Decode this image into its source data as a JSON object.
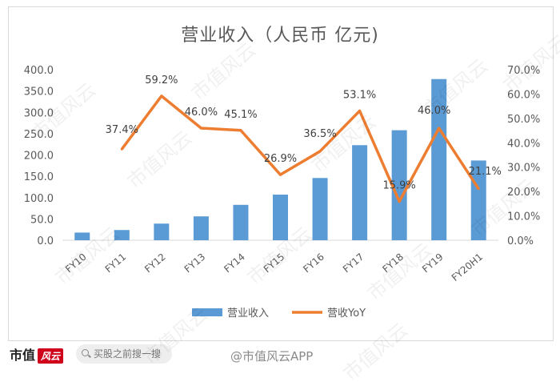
{
  "chart_data": {
    "type": "bar",
    "title": "营业收入（人民币 亿元)",
    "categories": [
      "FY10",
      "FY11",
      "FY12",
      "FY13",
      "FY14",
      "FY15",
      "FY16",
      "FY17",
      "FY18",
      "FY19",
      "FY20H1"
    ],
    "series": [
      {
        "name": "营业收入",
        "type": "bar",
        "axis": "left",
        "color": "#5b9bd5",
        "values": [
          18,
          24,
          39,
          56,
          83,
          107,
          146,
          223,
          258,
          378,
          187
        ]
      },
      {
        "name": "营收YoY",
        "type": "line",
        "axis": "right",
        "color": "#ed7d31",
        "values": [
          null,
          37.4,
          59.2,
          46.0,
          45.1,
          26.9,
          36.5,
          53.1,
          15.9,
          46.0,
          21.1
        ],
        "labels": [
          "",
          "37.4%",
          "59.2%",
          "46.0%",
          "45.1%",
          "26.9%",
          "36.5%",
          "53.1%",
          "15.9%",
          "46.0%",
          "21.1%"
        ]
      }
    ],
    "y_left": {
      "ylim": [
        0,
        400
      ],
      "ticks": [
        "0.0",
        "50.0",
        "100.0",
        "150.0",
        "200.0",
        "250.0",
        "300.0",
        "350.0",
        "400.0"
      ]
    },
    "y_right": {
      "ylim": [
        0,
        70
      ],
      "ticks": [
        "0.0%",
        "10.0%",
        "20.0%",
        "30.0%",
        "40.0%",
        "50.0%",
        "60.0%",
        "70.0%"
      ]
    },
    "grid": false,
    "legend_position": "bottom"
  },
  "footer": {
    "brand": "市值",
    "brand_badge": "风云",
    "search_placeholder": "买股之前搜一搜",
    "weibo_text": "@市值风云APP"
  },
  "watermark": "市值风云"
}
